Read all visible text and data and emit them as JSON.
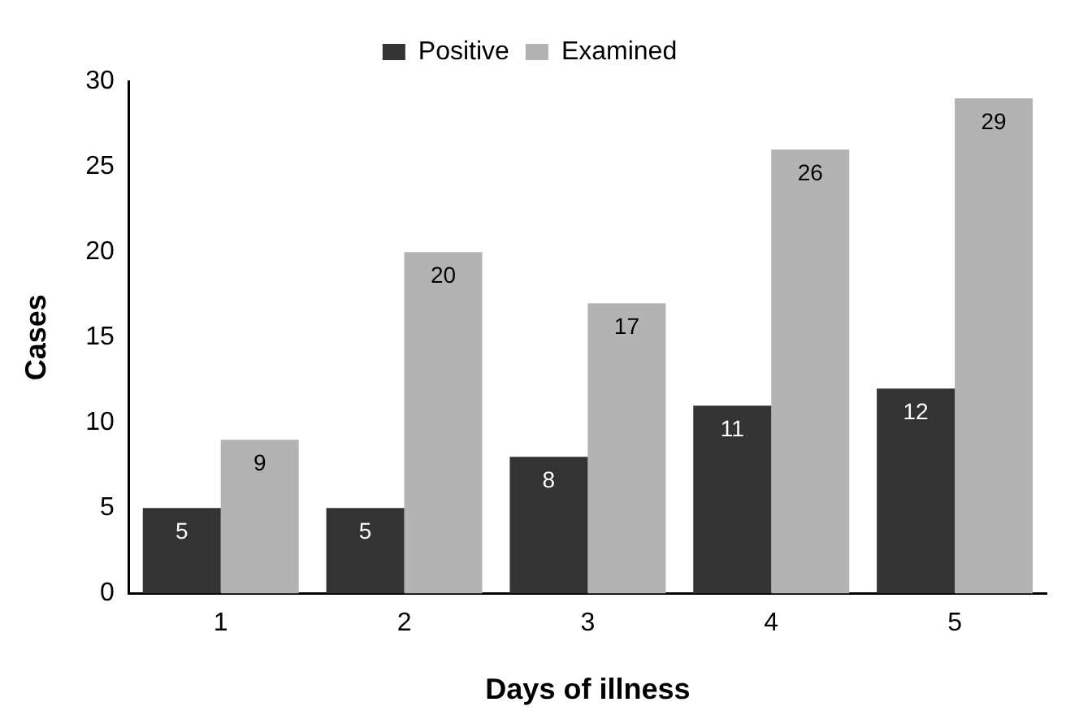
{
  "chart_data": {
    "type": "bar",
    "xlabel": "Days of illness",
    "ylabel": "Cases",
    "categories": [
      "1",
      "2",
      "3",
      "4",
      "5"
    ],
    "series": [
      {
        "name": "Positive",
        "color": "#333333",
        "values": [
          5,
          5,
          8,
          11,
          12
        ]
      },
      {
        "name": "Examined",
        "color": "#b3b3b3",
        "values": [
          9,
          20,
          17,
          26,
          29
        ]
      }
    ],
    "ylim": [
      0,
      30
    ],
    "yticks": [
      0,
      5,
      10,
      15,
      20,
      25,
      30
    ],
    "data_labels": true,
    "legend": "top",
    "grid": false
  }
}
